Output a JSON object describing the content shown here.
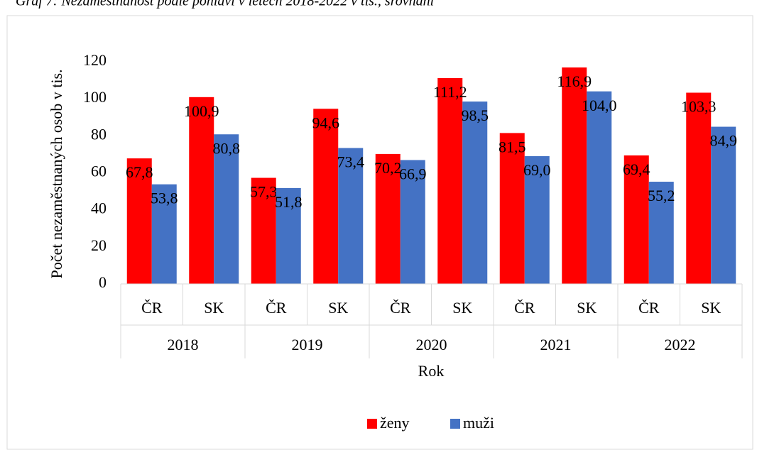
{
  "chart_data": {
    "type": "bar",
    "title": "Graf 7: Nezaměstnanost podle pohlaví v letech 2018-2022 v tis., srovnání",
    "categories": [
      "ČR",
      "SK",
      "ČR",
      "SK",
      "ČR",
      "SK",
      "ČR",
      "SK",
      "ČR",
      "SK"
    ],
    "category_groups": [
      "2018",
      "2019",
      "2020",
      "2021",
      "2022"
    ],
    "x_label": "Rok",
    "y_label": "Počet nezaměstnaných osob v tis.",
    "series": [
      {
        "name": "ženy",
        "color": "#ff0000",
        "values": [
          67.8,
          100.9,
          57.3,
          94.6,
          70.2,
          111.2,
          81.5,
          116.9,
          69.4,
          103.3
        ],
        "value_labels": [
          "67,8",
          "100,9",
          "57,3",
          "94,6",
          "70,2",
          "111,2",
          "81,5",
          "116,9",
          "69,4",
          "103,3"
        ]
      },
      {
        "name": "muži",
        "color": "#4472c4",
        "values": [
          53.8,
          80.8,
          51.8,
          73.4,
          66.9,
          98.5,
          69.0,
          104.0,
          55.2,
          84.9
        ],
        "value_labels": [
          "53,8",
          "80,8",
          "51,8",
          "73,4",
          "66,9",
          "98,5",
          "69,0",
          "104,0",
          "55,2",
          "84,9"
        ]
      }
    ],
    "ylim": [
      0,
      120
    ],
    "yticks": [
      0,
      20,
      40,
      60,
      80,
      100,
      120
    ],
    "grid": false,
    "legend": "bottom"
  }
}
